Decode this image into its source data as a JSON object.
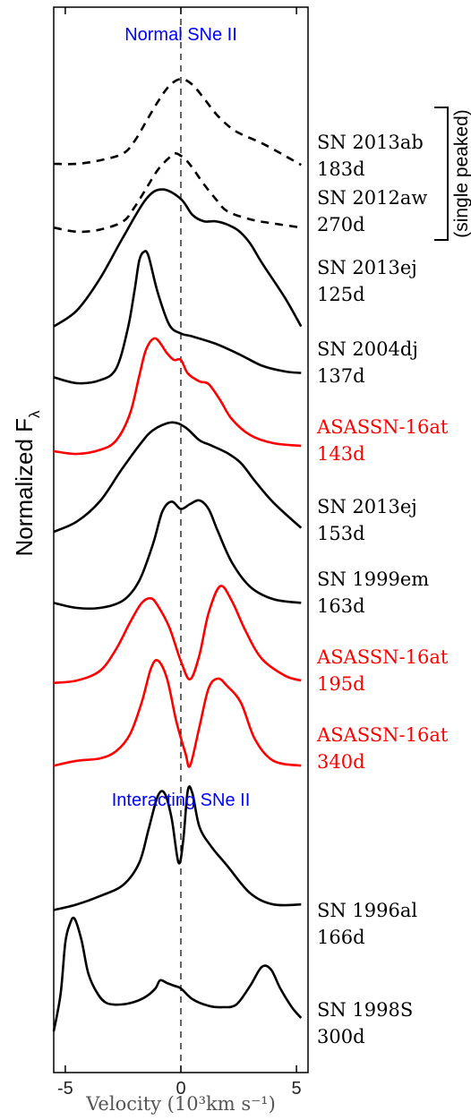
{
  "chart_data": {
    "type": "line",
    "xlabel": "Velocity (10³km s⁻¹)",
    "ylabel": "Normalized F",
    "ylabel_sub": "λ",
    "xlim": [
      -5.5,
      5.5
    ],
    "xticks": [
      -5,
      0,
      5
    ],
    "xtick_labels": [
      "-5",
      "0",
      "5"
    ],
    "grid": false,
    "reference_line": {
      "x": 0,
      "style": "dashed"
    },
    "section_titles": [
      {
        "text": "Normal SNe II",
        "color": "#0000ff"
      },
      {
        "text": "Interacting SNe II",
        "color": "#0000ff"
      }
    ],
    "bracket_label": "(single peaked)",
    "series": [
      {
        "name": "SN 2013ab",
        "phase": "183d",
        "color": "#000000",
        "dash": true,
        "x": [
          -5.5,
          -4.5,
          -3.5,
          -2.5,
          -2.0,
          -1.5,
          -1.0,
          -0.5,
          0.0,
          0.5,
          1.0,
          1.5,
          2.0,
          2.5,
          3.5,
          4.5,
          5.2
        ],
        "y": [
          0.18,
          0.18,
          0.21,
          0.27,
          0.38,
          0.55,
          0.72,
          0.86,
          0.92,
          0.87,
          0.75,
          0.62,
          0.52,
          0.45,
          0.36,
          0.25,
          0.17
        ]
      },
      {
        "name": "SN 2012aw",
        "phase": "270d",
        "color": "#000000",
        "dash": true,
        "x": [
          -5.5,
          -4.5,
          -3.5,
          -2.5,
          -2.0,
          -1.5,
          -1.0,
          -0.5,
          -0.2,
          0.2,
          0.5,
          1.0,
          1.5,
          2.0,
          3.0,
          4.0,
          5.2
        ],
        "y": [
          0.12,
          0.08,
          0.1,
          0.18,
          0.32,
          0.5,
          0.68,
          0.8,
          0.84,
          0.78,
          0.7,
          0.54,
          0.4,
          0.28,
          0.2,
          0.16,
          0.12
        ]
      },
      {
        "name": "SN 2013ej",
        "phase": "125d",
        "color": "#000000",
        "dash": false,
        "x": [
          -5.5,
          -4.5,
          -3.5,
          -2.5,
          -1.5,
          -0.8,
          0.0,
          0.5,
          1.0,
          1.5,
          2.0,
          2.5,
          3.0,
          3.5,
          4.5,
          5.2
        ],
        "y": [
          0.12,
          0.22,
          0.42,
          0.68,
          0.92,
          0.98,
          0.92,
          0.82,
          0.78,
          0.78,
          0.76,
          0.72,
          0.64,
          0.52,
          0.3,
          0.12
        ]
      },
      {
        "name": "SN 2004dj",
        "phase": "137d",
        "color": "#000000",
        "dash": false,
        "x": [
          -5.5,
          -4.5,
          -3.5,
          -2.8,
          -2.3,
          -2.0,
          -1.8,
          -1.6,
          -1.4,
          -1.0,
          -0.5,
          0.0,
          0.5,
          1.5,
          2.5,
          3.5,
          4.5,
          5.2
        ],
        "y": [
          0.12,
          0.08,
          0.1,
          0.18,
          0.45,
          0.72,
          0.92,
          0.98,
          0.95,
          0.7,
          0.48,
          0.42,
          0.4,
          0.35,
          0.28,
          0.2,
          0.16,
          0.15
        ]
      },
      {
        "name": "ASASSN-16at",
        "phase": "143d",
        "color": "#ff0000",
        "dash": false,
        "x": [
          -5.5,
          -4.5,
          -3.5,
          -2.8,
          -2.2,
          -1.8,
          -1.5,
          -1.1,
          -0.6,
          -0.3,
          0.0,
          0.3,
          0.8,
          1.2,
          1.7,
          2.2,
          3.0,
          4.0,
          5.2
        ],
        "y": [
          0.12,
          0.1,
          0.13,
          0.2,
          0.4,
          0.68,
          0.88,
          0.96,
          0.85,
          0.8,
          0.8,
          0.7,
          0.64,
          0.62,
          0.5,
          0.36,
          0.24,
          0.18,
          0.16
        ]
      },
      {
        "name": "SN 2013ej",
        "phase": "153d",
        "color": "#000000",
        "dash": false,
        "x": [
          -5.5,
          -4.5,
          -3.5,
          -2.6,
          -1.8,
          -1.2,
          -0.4,
          0.2,
          0.8,
          1.3,
          2.0,
          2.6,
          3.2,
          4.0,
          5.2
        ],
        "y": [
          0.12,
          0.2,
          0.36,
          0.6,
          0.8,
          0.92,
          0.98,
          0.94,
          0.84,
          0.8,
          0.74,
          0.66,
          0.52,
          0.35,
          0.15
        ]
      },
      {
        "name": "SN 1999em",
        "phase": "163d",
        "color": "#000000",
        "dash": false,
        "x": [
          -5.5,
          -4.5,
          -3.5,
          -2.5,
          -1.8,
          -1.2,
          -0.8,
          -0.4,
          0.0,
          0.4,
          0.8,
          1.2,
          1.6,
          2.2,
          3.0,
          4.0,
          5.2
        ],
        "y": [
          0.12,
          0.08,
          0.08,
          0.14,
          0.3,
          0.6,
          0.86,
          0.94,
          0.88,
          0.92,
          0.95,
          0.88,
          0.7,
          0.45,
          0.25,
          0.15,
          0.12
        ]
      },
      {
        "name": "ASASSN-16at",
        "phase": "195d",
        "color": "#ff0000",
        "dash": false,
        "x": [
          -5.5,
          -4.5,
          -3.5,
          -2.8,
          -2.2,
          -1.7,
          -1.3,
          -1.0,
          -0.5,
          0.0,
          0.4,
          0.8,
          1.2,
          1.7,
          2.2,
          2.8,
          3.5,
          4.5,
          5.2
        ],
        "y": [
          0.12,
          0.14,
          0.22,
          0.4,
          0.62,
          0.78,
          0.82,
          0.76,
          0.58,
          0.3,
          0.15,
          0.35,
          0.7,
          0.92,
          0.8,
          0.55,
          0.32,
          0.18,
          0.14
        ]
      },
      {
        "name": "ASASSN-16at",
        "phase": "340d",
        "color": "#ff0000",
        "dash": false,
        "x": [
          -5.5,
          -4.5,
          -3.5,
          -2.8,
          -2.2,
          -1.7,
          -1.3,
          -1.0,
          -0.6,
          -0.2,
          0.2,
          0.4,
          0.8,
          1.2,
          1.6,
          2.0,
          2.6,
          3.2,
          4.0,
          5.2
        ],
        "y": [
          0.08,
          0.12,
          0.14,
          0.2,
          0.34,
          0.6,
          0.88,
          0.95,
          0.8,
          0.45,
          0.18,
          0.08,
          0.4,
          0.72,
          0.8,
          0.74,
          0.6,
          0.3,
          0.12,
          0.08
        ]
      },
      {
        "name": "SN 1996al",
        "phase": "166d",
        "color": "#000000",
        "dash": false,
        "x": [
          -5.5,
          -4.5,
          -3.5,
          -2.5,
          -1.8,
          -1.4,
          -1.0,
          -0.7,
          -0.4,
          -0.1,
          0.1,
          0.3,
          0.5,
          0.8,
          1.3,
          2.0,
          3.0,
          4.0,
          5.2
        ],
        "y": [
          0.12,
          0.16,
          0.22,
          0.3,
          0.46,
          0.7,
          0.94,
          0.96,
          0.78,
          0.46,
          0.62,
          0.98,
          0.96,
          0.72,
          0.58,
          0.44,
          0.24,
          0.16,
          0.16
        ]
      },
      {
        "name": "SN 1998S",
        "phase": "300d",
        "color": "#000000",
        "dash": false,
        "x": [
          -5.5,
          -5.2,
          -5.0,
          -4.8,
          -4.6,
          -4.3,
          -4.0,
          -3.6,
          -3.2,
          -2.6,
          -2.0,
          -1.5,
          -1.1,
          -0.9,
          -0.6,
          -0.3,
          0.0,
          0.5,
          1.2,
          1.8,
          2.4,
          3.0,
          3.5,
          3.9,
          4.3,
          4.8,
          5.2
        ],
        "y": [
          0.12,
          0.4,
          0.78,
          0.92,
          0.96,
          0.8,
          0.55,
          0.4,
          0.33,
          0.32,
          0.34,
          0.38,
          0.44,
          0.5,
          0.48,
          0.46,
          0.44,
          0.36,
          0.31,
          0.3,
          0.32,
          0.46,
          0.6,
          0.58,
          0.44,
          0.3,
          0.22
        ]
      }
    ]
  }
}
